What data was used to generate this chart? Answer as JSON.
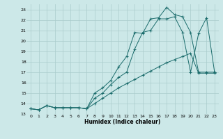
{
  "xlabel": "Humidex (Indice chaleur)",
  "bg_color": "#cce8e8",
  "grid_color": "#aacccc",
  "line_color": "#1a6b6b",
  "xlim": [
    -0.5,
    23.5
  ],
  "ylim": [
    13,
    23.5
  ],
  "xticks": [
    0,
    1,
    2,
    3,
    4,
    5,
    6,
    7,
    8,
    9,
    10,
    11,
    12,
    13,
    14,
    15,
    16,
    17,
    18,
    19,
    20,
    21,
    22,
    23
  ],
  "yticks": [
    13,
    14,
    15,
    16,
    17,
    18,
    19,
    20,
    21,
    22,
    23
  ],
  "line1_x": [
    0,
    1,
    2,
    3,
    4,
    5,
    6,
    7,
    8,
    9,
    10,
    11,
    12,
    13,
    14,
    15,
    16,
    17,
    18,
    19,
    20,
    21,
    22,
    23
  ],
  "line1_y": [
    13.5,
    13.4,
    13.8,
    13.6,
    13.6,
    13.6,
    13.6,
    13.5,
    14.5,
    15.0,
    15.8,
    16.5,
    17.0,
    19.2,
    20.8,
    21.0,
    22.1,
    22.1,
    22.3,
    20.8,
    17.0,
    20.7,
    22.2,
    17.0
  ],
  "line2_x": [
    0,
    1,
    2,
    3,
    4,
    5,
    6,
    7,
    8,
    9,
    10,
    11,
    12,
    13,
    14,
    15,
    16,
    17,
    18,
    19,
    20,
    21,
    22,
    23
  ],
  "line2_y": [
    13.5,
    13.4,
    13.8,
    13.6,
    13.6,
    13.6,
    13.6,
    13.5,
    15.0,
    15.5,
    16.2,
    17.5,
    18.5,
    20.8,
    20.7,
    22.1,
    22.2,
    23.2,
    22.5,
    22.3,
    20.8,
    17.0,
    17.0,
    17.0
  ],
  "line3_x": [
    0,
    1,
    2,
    3,
    4,
    5,
    6,
    7,
    8,
    9,
    10,
    11,
    12,
    13,
    14,
    15,
    16,
    17,
    18,
    19,
    20,
    21,
    22,
    23
  ],
  "line3_y": [
    13.5,
    13.4,
    13.8,
    13.6,
    13.6,
    13.6,
    13.6,
    13.5,
    14.0,
    14.5,
    15.0,
    15.5,
    15.9,
    16.3,
    16.7,
    17.1,
    17.5,
    17.9,
    18.2,
    18.5,
    18.8,
    16.9,
    16.9,
    16.9
  ]
}
